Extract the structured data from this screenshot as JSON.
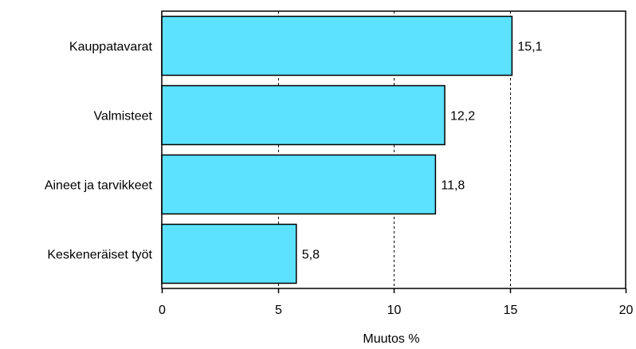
{
  "chart_data": {
    "type": "bar",
    "orientation": "horizontal",
    "categories": [
      "Kauppatavarat",
      "Valmisteet",
      "Aineet ja tarvikkeet",
      "Keskeneräiset työt"
    ],
    "values": [
      15.1,
      12.2,
      11.8,
      5.8
    ],
    "value_labels": [
      "15,1",
      "12,2",
      "11,8",
      "5,8"
    ],
    "xlabel": "Muutos %",
    "xlim": [
      0,
      20
    ],
    "xticks": [
      0,
      5,
      10,
      15,
      20
    ],
    "xtick_labels": [
      "0",
      "5",
      "10",
      "15",
      "20"
    ],
    "grid": "vertical dashed",
    "bar_color": "#5ce1ff",
    "bar_edge_color": "#000000"
  }
}
